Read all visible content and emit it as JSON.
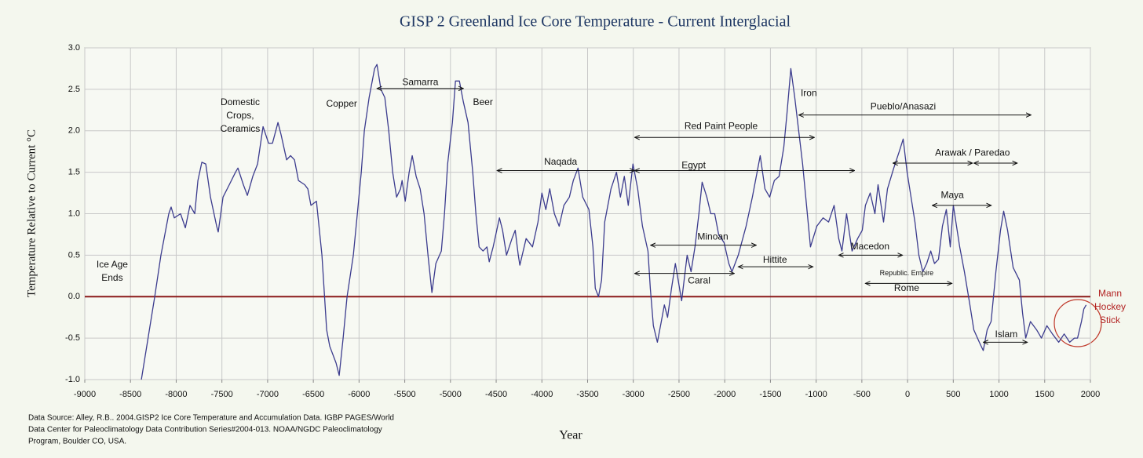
{
  "chart_data": {
    "type": "line",
    "title": "GISP 2 Greenland Ice Core Temperature - Current Interglacial",
    "x_label": "Year",
    "y_label": "Temperature Relative to Current °C",
    "xlim": [
      -9000,
      2000
    ],
    "ylim": [
      -1,
      3
    ],
    "xticks": [
      -9000,
      -8500,
      -8000,
      -7500,
      -7000,
      -6500,
      -6000,
      -5500,
      -5000,
      -4500,
      -4000,
      -3500,
      -3000,
      -2500,
      -2000,
      -1500,
      -1000,
      -500,
      0,
      500,
      1000,
      1500,
      2000
    ],
    "yticks": [
      {
        "value": -1,
        "label": "-1.0"
      },
      {
        "value": -0.5,
        "label": "-0.5"
      },
      {
        "value": 0,
        "label": "0.0"
      },
      {
        "value": 0.5,
        "label": "0.5"
      },
      {
        "value": 1,
        "label": "1.0"
      },
      {
        "value": 1.5,
        "label": "1.5"
      },
      {
        "value": 2,
        "label": "2.0"
      },
      {
        "value": 2.5,
        "label": "2.5"
      },
      {
        "value": 3,
        "label": "3.0"
      }
    ],
    "grid": true,
    "reference_line": {
      "value": 0,
      "color": "#8b1a1a"
    },
    "x": [
      -8381,
      -8235,
      -8167,
      -8081,
      -8055,
      -8021,
      -7952,
      -7900,
      -7849,
      -7797,
      -7763,
      -7720,
      -7677,
      -7625,
      -7557,
      -7540,
      -7488,
      -7419,
      -7351,
      -7325,
      -7265,
      -7222,
      -7162,
      -7110,
      -7050,
      -6990,
      -6947,
      -6887,
      -6852,
      -6792,
      -6749,
      -6706,
      -6663,
      -6595,
      -6560,
      -6526,
      -6466,
      -6406,
      -6354,
      -6320,
      -6251,
      -6217,
      -6174,
      -6131,
      -6062,
      -6019,
      -5976,
      -5942,
      -5890,
      -5830,
      -5804,
      -5761,
      -5718,
      -5675,
      -5632,
      -5589,
      -5546,
      -5529,
      -5495,
      -5452,
      -5418,
      -5375,
      -5332,
      -5289,
      -5246,
      -5203,
      -5160,
      -5100,
      -5065,
      -5031,
      -4979,
      -4945,
      -4902,
      -4859,
      -4808,
      -4756,
      -4722,
      -4687,
      -4644,
      -4601,
      -4576,
      -4533,
      -4464,
      -4430,
      -4387,
      -4327,
      -4292,
      -4258,
      -4241,
      -4172,
      -4103,
      -4043,
      -4000,
      -3957,
      -3914,
      -3863,
      -3811,
      -3759,
      -3699,
      -3656,
      -3605,
      -3553,
      -3485,
      -3442,
      -3416,
      -3381,
      -3347,
      -3313,
      -3244,
      -3184,
      -3141,
      -3098,
      -3055,
      -3004,
      -2952,
      -2900,
      -2840,
      -2814,
      -2780,
      -2737,
      -2694,
      -2660,
      -2625,
      -2582,
      -2540,
      -2471,
      -2411,
      -2368,
      -2325,
      -2282,
      -2247,
      -2196,
      -2153,
      -2110,
      -2067,
      -2007,
      -1955,
      -1921,
      -1852,
      -1766,
      -1698,
      -1655,
      -1612,
      -1560,
      -1509,
      -1457,
      -1406,
      -1354,
      -1320,
      -1277,
      -1234,
      -1191,
      -1148,
      -1105,
      -1062,
      -993,
      -924,
      -864,
      -804,
      -753,
      -718,
      -684,
      -667,
      -607,
      -546,
      -495,
      -461,
      -409,
      -357,
      -323,
      -263,
      -220,
      -151,
      -91,
      -48,
      -5,
      38,
      81,
      124,
      167,
      210,
      253,
      295,
      338,
      381,
      424,
      467,
      501,
      570,
      622,
      682,
      725,
      785,
      828,
      871,
      914,
      966,
      1017,
      1051,
      1094,
      1155,
      1223,
      1258,
      1292,
      1344,
      1412,
      1464,
      1524,
      1584,
      1653,
      1713,
      1773,
      1825,
      1859,
      1902,
      1928,
      1954
    ],
    "series": [
      {
        "color": "#3c3c8e",
        "values": [
          -1.0,
          0.0,
          0.5,
          1.0,
          1.08,
          0.95,
          1.0,
          0.83,
          1.1,
          1.0,
          1.4,
          1.62,
          1.6,
          1.2,
          0.85,
          0.78,
          1.2,
          1.35,
          1.5,
          1.55,
          1.35,
          1.22,
          1.45,
          1.6,
          2.05,
          1.85,
          1.85,
          2.1,
          1.95,
          1.65,
          1.7,
          1.65,
          1.4,
          1.35,
          1.3,
          1.1,
          1.15,
          0.5,
          -0.4,
          -0.6,
          -0.8,
          -0.95,
          -0.5,
          0.0,
          0.5,
          1.0,
          1.5,
          2.0,
          2.4,
          2.75,
          2.8,
          2.5,
          2.4,
          2.0,
          1.5,
          1.2,
          1.3,
          1.4,
          1.15,
          1.5,
          1.7,
          1.45,
          1.3,
          1.0,
          0.5,
          0.05,
          0.4,
          0.55,
          1.0,
          1.6,
          2.1,
          2.6,
          2.6,
          2.35,
          2.1,
          1.5,
          1.0,
          0.6,
          0.55,
          0.6,
          0.42,
          0.6,
          0.95,
          0.8,
          0.5,
          0.7,
          0.8,
          0.5,
          0.38,
          0.7,
          0.6,
          0.9,
          1.25,
          1.05,
          1.3,
          1.0,
          0.85,
          1.1,
          1.2,
          1.4,
          1.55,
          1.2,
          1.05,
          0.6,
          0.1,
          0.0,
          0.2,
          0.9,
          1.3,
          1.5,
          1.2,
          1.45,
          1.1,
          1.6,
          1.3,
          0.85,
          0.55,
          0.1,
          -0.35,
          -0.55,
          -0.3,
          -0.1,
          -0.25,
          0.1,
          0.4,
          -0.05,
          0.5,
          0.3,
          0.6,
          1.0,
          1.38,
          1.2,
          1.0,
          1.0,
          0.75,
          0.65,
          0.4,
          0.3,
          0.5,
          0.85,
          1.2,
          1.45,
          1.7,
          1.3,
          1.2,
          1.4,
          1.45,
          1.8,
          2.2,
          2.75,
          2.4,
          2.0,
          1.6,
          1.1,
          0.6,
          0.85,
          0.95,
          0.9,
          1.1,
          0.7,
          0.55,
          0.85,
          1.0,
          0.55,
          0.7,
          0.8,
          1.1,
          1.25,
          1.0,
          1.35,
          0.9,
          1.3,
          1.55,
          1.75,
          1.9,
          1.5,
          1.2,
          0.9,
          0.5,
          0.3,
          0.4,
          0.55,
          0.4,
          0.45,
          0.85,
          1.05,
          0.6,
          1.1,
          0.6,
          0.3,
          -0.1,
          -0.4,
          -0.55,
          -0.65,
          -0.4,
          -0.3,
          0.3,
          0.8,
          1.03,
          0.8,
          0.35,
          0.2,
          -0.2,
          -0.5,
          -0.3,
          -0.4,
          -0.5,
          -0.35,
          -0.45,
          -0.55,
          -0.45,
          -0.55,
          -0.5,
          -0.5,
          -0.3,
          -0.15,
          -0.1
        ]
      }
    ],
    "annotations": [
      {
        "lines": [
          "Ice Age",
          "Ends"
        ],
        "x": -8700,
        "y": 0.3
      },
      {
        "lines": [
          "Domestic",
          "Crops,",
          "Ceramics"
        ],
        "x": -7300,
        "y": 2.18
      },
      {
        "lines": [
          "Copper"
        ],
        "x": -6190,
        "y": 2.32
      },
      {
        "lines": [
          "Samarra"
        ],
        "x": -5330,
        "y": 2.58,
        "spans": [
          [
            -5804,
            -4859
          ]
        ],
        "arrow_y": 2.51
      },
      {
        "lines": [
          "Beer"
        ],
        "x": -4645,
        "y": 2.34
      },
      {
        "lines": [
          "Naqada"
        ],
        "x": -3795,
        "y": 1.62,
        "spans": [
          [
            -4490,
            -2985
          ]
        ],
        "arrow_y": 1.52
      },
      {
        "lines": [
          "Egypt"
        ],
        "x": -2340,
        "y": 1.58,
        "spans": [
          [
            -2985,
            -580
          ]
        ],
        "arrow_y": 1.52
      },
      {
        "lines": [
          "Red Paint People"
        ],
        "x": -2040,
        "y": 2.05,
        "spans": [
          [
            -2985,
            -1020
          ]
        ],
        "arrow_y": 1.92
      },
      {
        "lines": [
          "Iron"
        ],
        "x": -1080,
        "y": 2.45
      },
      {
        "lines": [
          "Pueblo/Anasazi"
        ],
        "x": -48,
        "y": 2.29,
        "spans": [
          [
            -1190,
            1350
          ]
        ],
        "arrow_y": 2.19
      },
      {
        "lines": [
          "Arawak / Paredao"
        ],
        "x": 710,
        "y": 1.73,
        "spans": [
          [
            -160,
            710
          ],
          [
            725,
            1200
          ]
        ],
        "arrow_y": 1.61
      },
      {
        "lines": [
          "Maya"
        ],
        "x": 490,
        "y": 1.22,
        "spans": [
          [
            270,
            915
          ]
        ],
        "arrow_y": 1.1
      },
      {
        "lines": [
          "Minoan"
        ],
        "x": -2130,
        "y": 0.72,
        "spans": [
          [
            -2810,
            -1655
          ]
        ],
        "arrow_y": 0.62
      },
      {
        "lines": [
          "Hittite"
        ],
        "x": -1450,
        "y": 0.44,
        "spans": [
          [
            -1852,
            -1035
          ]
        ],
        "arrow_y": 0.36
      },
      {
        "lines": [
          "Caral"
        ],
        "x": -2280,
        "y": 0.19,
        "spans": [
          [
            -2985,
            -1895
          ]
        ],
        "arrow_y": 0.28
      },
      {
        "lines": [
          "Macedon"
        ],
        "x": -410,
        "y": 0.6,
        "spans": [
          [
            -753,
            -56
          ]
        ],
        "arrow_y": 0.5
      },
      {
        "lines": [
          "Republic. Empire"
        ],
        "x": -10,
        "y": 0.28,
        "spans": [
          [
            -461,
            485
          ]
        ],
        "arrow_y": 0.16,
        "size": "small"
      },
      {
        "lines": [
          "Rome"
        ],
        "x": -10,
        "y": 0.1
      },
      {
        "lines": [
          "Islam"
        ],
        "x": 1080,
        "y": -0.46,
        "spans": [
          [
            828,
            1310
          ]
        ],
        "arrow_y": -0.55
      },
      {
        "lines": [
          "Mann",
          "Hockey",
          "Stick"
        ],
        "x": 2215,
        "y": -0.13,
        "color": "#b22222"
      }
    ],
    "source": [
      "Data Source: Alley, R.B..  2004.GISP2 Ice Core Temperature and Accumulation Data. IGBP PAGES/World",
      "Data Center for Paleoclimatology Data Contribution Series#2004-013. NOAA/NGDC Paleoclimatology",
      "Program, Boulder CO, USA."
    ]
  }
}
